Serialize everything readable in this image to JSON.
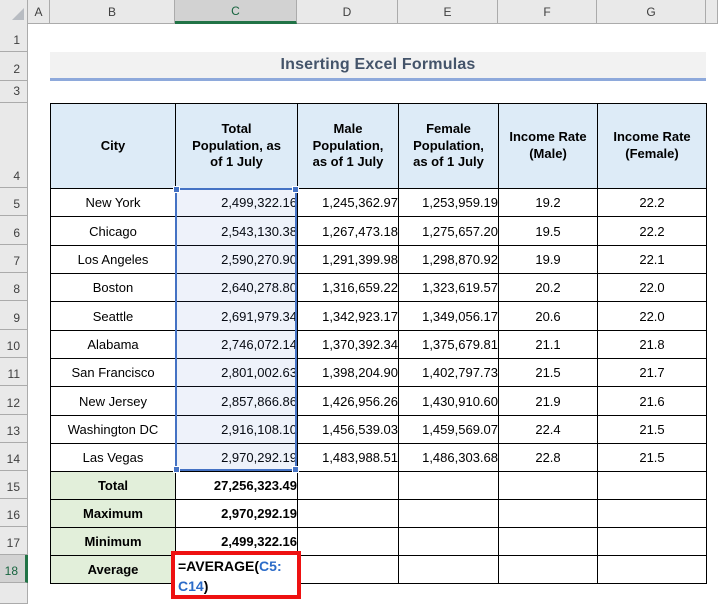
{
  "title": {
    "text": "Inserting Excel Formulas"
  },
  "sheet": {
    "columns": [
      "A",
      "B",
      "C",
      "D",
      "E",
      "F",
      "G"
    ],
    "selected_column": "C",
    "row_numbers": [
      "1",
      "2",
      "3",
      "4",
      "5",
      "6",
      "7",
      "8",
      "9",
      "10",
      "11",
      "12",
      "13",
      "14",
      "15",
      "16",
      "17",
      "18"
    ],
    "selected_row": "18",
    "active_cell": "C18"
  },
  "table": {
    "headers": [
      "City",
      "Total Population, as of 1 July",
      "Male Population, as of 1 July",
      "Female Population, as of 1 July",
      "Income Rate (Male)",
      "Income Rate (Female)"
    ],
    "rows": [
      [
        "New York",
        "2,499,322.16",
        "1,245,362.97",
        "1,253,959.19",
        "19.2",
        "22.2"
      ],
      [
        "Chicago",
        "2,543,130.38",
        "1,267,473.18",
        "1,275,657.20",
        "19.5",
        "22.2"
      ],
      [
        "Los Angeles",
        "2,590,270.90",
        "1,291,399.98",
        "1,298,870.92",
        "19.9",
        "22.1"
      ],
      [
        "Boston",
        "2,640,278.80",
        "1,316,659.22",
        "1,323,619.57",
        "20.2",
        "22.0"
      ],
      [
        "Seattle",
        "2,691,979.34",
        "1,342,923.17",
        "1,349,056.17",
        "20.6",
        "22.0"
      ],
      [
        "Alabama",
        "2,746,072.14",
        "1,370,392.34",
        "1,375,679.81",
        "21.1",
        "21.8"
      ],
      [
        "San Francisco",
        "2,801,002.63",
        "1,398,204.90",
        "1,402,797.73",
        "21.5",
        "21.7"
      ],
      [
        "New Jersey",
        "2,857,866.86",
        "1,426,956.26",
        "1,430,910.60",
        "21.9",
        "21.6"
      ],
      [
        "Washington DC",
        "2,916,108.10",
        "1,456,539.03",
        "1,459,569.07",
        "22.4",
        "21.5"
      ],
      [
        "Las Vegas",
        "2,970,292.19",
        "1,483,988.51",
        "1,486,303.68",
        "22.8",
        "21.5"
      ]
    ],
    "summary_rows": [
      {
        "label": "Total",
        "value": "27,256,323.49"
      },
      {
        "label": "Maximum",
        "value": "2,970,292.19"
      },
      {
        "label": "Minimum",
        "value": "2,499,322.16"
      },
      {
        "label": "Average",
        "value": ""
      }
    ]
  },
  "formula": {
    "full_text": "=AVERAGE(C5:C14)",
    "line1": [
      {
        "text": "=AVERAGE(",
        "color": "#000000"
      },
      {
        "text": "C5:",
        "color": "#2B6BC8"
      }
    ],
    "line2": [
      {
        "text": "C14",
        "color": "#2B6BC8"
      },
      {
        "text": ")",
        "color": "#000000"
      }
    ]
  },
  "colors": {
    "excel_green": "#217346",
    "selection_blue": "#4472C4",
    "annotation_red": "#EE1111",
    "header_fill": "#DDEBF7",
    "summary_fill": "#E2EFDA",
    "title_text": "#44546A",
    "title_underline": "#8EA9DB",
    "strip_bg": "#E9E9E9",
    "strip_selected_bg": "#D2D2D2"
  }
}
